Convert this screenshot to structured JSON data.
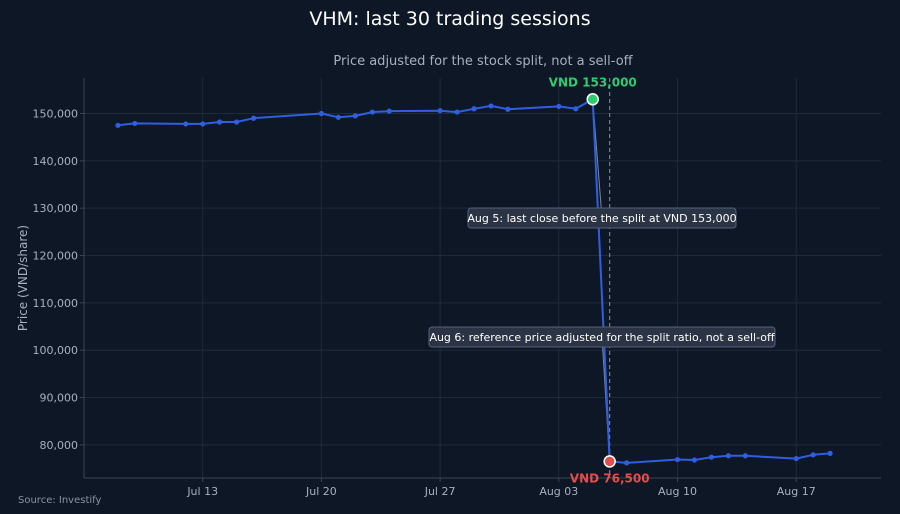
{
  "chart_data": {
    "type": "line",
    "title": "VHM: last 30 trading sessions",
    "subtitle": "Price adjusted for the stock split, not a sell-off",
    "ylabel": "Price (VND/share)",
    "source": "Source: Investify",
    "ylim": [
      73000,
      157500
    ],
    "y_ticks": [
      80000,
      90000,
      100000,
      110000,
      120000,
      130000,
      140000,
      150000
    ],
    "y_tick_labels": [
      "80,000",
      "90,000",
      "100,000",
      "110,000",
      "120,000",
      "130,000",
      "140,000",
      "150,000"
    ],
    "x_range": [
      "2024-07-06",
      "2024-08-22"
    ],
    "x_ticks": [
      "2024-07-13",
      "2024-07-20",
      "2024-07-27",
      "2024-08-03",
      "2024-08-10",
      "2024-08-17"
    ],
    "x_tick_labels": [
      "Jul 13",
      "Jul 20",
      "Jul 27",
      "Aug 03",
      "Aug 10",
      "Aug 17"
    ],
    "grid": true,
    "series": [
      {
        "color": "#2f5fe0",
        "points": [
          {
            "x": "2024-07-08",
            "y": 147500
          },
          {
            "x": "2024-07-09",
            "y": 147900
          },
          {
            "x": "2024-07-12",
            "y": 147800
          },
          {
            "x": "2024-07-13",
            "y": 147800
          },
          {
            "x": "2024-07-14",
            "y": 148200
          },
          {
            "x": "2024-07-15",
            "y": 148200
          },
          {
            "x": "2024-07-16",
            "y": 149000
          },
          {
            "x": "2024-07-20",
            "y": 150000
          },
          {
            "x": "2024-07-21",
            "y": 149200
          },
          {
            "x": "2024-07-22",
            "y": 149500
          },
          {
            "x": "2024-07-23",
            "y": 150300
          },
          {
            "x": "2024-07-24",
            "y": 150500
          },
          {
            "x": "2024-07-27",
            "y": 150600
          },
          {
            "x": "2024-07-28",
            "y": 150300
          },
          {
            "x": "2024-07-29",
            "y": 151000
          },
          {
            "x": "2024-07-30",
            "y": 151600
          },
          {
            "x": "2024-07-31",
            "y": 150900
          },
          {
            "x": "2024-08-03",
            "y": 151500
          },
          {
            "x": "2024-08-04",
            "y": 151000
          },
          {
            "x": "2024-08-05",
            "y": 153000
          },
          {
            "x": "2024-08-06",
            "y": 76500
          },
          {
            "x": "2024-08-07",
            "y": 76200
          },
          {
            "x": "2024-08-10",
            "y": 76900
          },
          {
            "x": "2024-08-11",
            "y": 76800
          },
          {
            "x": "2024-08-12",
            "y": 77400
          },
          {
            "x": "2024-08-13",
            "y": 77700
          },
          {
            "x": "2024-08-14",
            "y": 77700
          },
          {
            "x": "2024-08-17",
            "y": 77100
          },
          {
            "x": "2024-08-18",
            "y": 77900
          },
          {
            "x": "2024-08-19",
            "y": 78200
          }
        ]
      }
    ],
    "vline_x": "2024-08-06",
    "highlights": [
      {
        "x": "2024-08-05",
        "y": 153000,
        "label": "VND 153,000",
        "color": "#2ecc71"
      },
      {
        "x": "2024-08-06",
        "y": 76500,
        "label": "VND 76,500",
        "color": "#e74c4c"
      }
    ],
    "annotations": [
      {
        "text": "Aug 5: last close before the split at VND 153,000",
        "x": "2024-08-05",
        "y": 153000
      },
      {
        "text": "Aug 6: reference price adjusted for the split ratio, not a sell-off",
        "x": "2024-08-06",
        "y": 76500
      }
    ]
  },
  "colors": {
    "background": "#0e1726",
    "line": "#2f5fe0",
    "grid": "#1f2a3c",
    "axis": "#3a4558"
  }
}
